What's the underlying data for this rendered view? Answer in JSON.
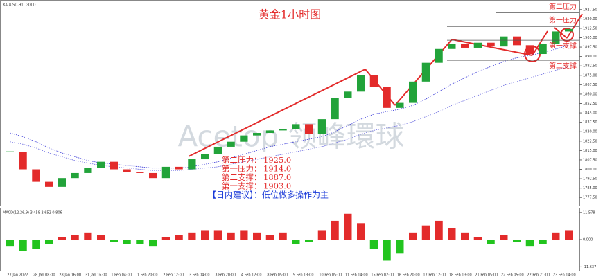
{
  "chart_data": [
    {
      "type": "candlestick",
      "title": "黄金1小时图",
      "symbol": "XAUUSD,H1: GOLD",
      "watermark": "Acetop 领峰環球",
      "categories": [
        "27 Jan 2022",
        null,
        "28 Jan 08:00",
        null,
        "28 Jan 16:00",
        null,
        "31 Jan 16:00",
        null,
        "1 Feb 04:00",
        null,
        "1 Feb 20:00",
        null,
        "2 Feb 12:00",
        null,
        "3 Feb 04:00",
        null,
        "3 Feb 20:00",
        null,
        "4 Feb 12:00",
        null,
        "8 Feb 05:00",
        null,
        "9 Feb 13:00",
        null,
        "10 Feb 05:00",
        null,
        "11 Feb 14:00",
        null,
        "15 Feb 02:00",
        null,
        "16 Feb 20:00",
        null,
        "17 Feb 12:00",
        null,
        "18 Feb 13:00",
        null,
        "21 Feb 05:00",
        null,
        "22 Feb 05:00",
        null,
        "22 Feb 21:00",
        null,
        "23 Feb 14:00",
        null
      ],
      "closes": [
        1814,
        1800,
        1790,
        1786,
        1793,
        1797,
        1801,
        1806,
        1800,
        1798,
        1797,
        1793,
        1802,
        1800,
        1808,
        1812,
        1818,
        1822,
        1827,
        1829,
        1831,
        1832,
        1836,
        1828,
        1840,
        1857,
        1862,
        1875,
        1866,
        1849,
        1853,
        1870,
        1885,
        1896,
        1900,
        1897,
        1901,
        1898,
        1906,
        1899,
        1892,
        1900,
        1910,
        1912
      ],
      "up_color": "#22a33a",
      "down_color": "#e32b2b",
      "moving_averages": [
        {
          "color": "#3a3ad8",
          "values": [
            1829,
            1826,
            1822,
            1817,
            1813,
            1810,
            1807,
            1805,
            1804,
            1803,
            1802,
            1801,
            1801,
            1801,
            1802,
            1804,
            1806,
            1809,
            1812,
            1815,
            1818,
            1820,
            1822,
            1824,
            1826,
            1830,
            1835,
            1840,
            1844,
            1846,
            1848,
            1851,
            1856,
            1862,
            1868,
            1873,
            1878,
            1882,
            1886,
            1889,
            1891,
            1893,
            1896,
            1899
          ]
        },
        {
          "color": "#6a6ae0",
          "values": [
            1822,
            1820,
            1817,
            1813,
            1810,
            1807,
            1805,
            1803,
            1802,
            1801,
            1800,
            1799,
            1799,
            1799,
            1800,
            1801,
            1802,
            1804,
            1806,
            1808,
            1810,
            1812,
            1814,
            1816,
            1818,
            1821,
            1824,
            1828,
            1831,
            1833,
            1835,
            1838,
            1842,
            1846,
            1851,
            1855,
            1859,
            1863,
            1867,
            1870,
            1873,
            1876,
            1879,
            1882
          ]
        }
      ],
      "ylim": [
        1771,
        1934
      ],
      "yticks": [
        {
          "value": 1927.5,
          "label": "1927.50"
        },
        {
          "value": 1920,
          "label": "1920.00"
        },
        {
          "value": 1912.5,
          "label": "1912.50"
        },
        {
          "value": 1905,
          "label": "1905.00"
        },
        {
          "value": 1897.5,
          "label": "1897.50"
        },
        {
          "value": 1890,
          "label": "1890.00"
        },
        {
          "value": 1882.5,
          "label": "1882.50"
        },
        {
          "value": 1875,
          "label": "1875.00"
        },
        {
          "value": 1867.5,
          "label": "1867.50"
        },
        {
          "value": 1860,
          "label": "1860.00"
        },
        {
          "value": 1852.5,
          "label": "1852.50"
        },
        {
          "value": 1845,
          "label": "1845.00"
        },
        {
          "value": 1837.5,
          "label": "1837.50"
        },
        {
          "value": 1830,
          "label": "1830.00"
        },
        {
          "value": 1822.5,
          "label": "1822.50"
        },
        {
          "value": 1815,
          "label": "1815.00"
        },
        {
          "value": 1807.5,
          "label": "1807.50"
        },
        {
          "value": 1800,
          "label": "1800.00"
        },
        {
          "value": 1792.5,
          "label": "1792.50"
        },
        {
          "value": 1785,
          "label": "1785.00"
        },
        {
          "value": 1777.5,
          "label": "1777.50"
        }
      ],
      "separator": "：",
      "levels": [
        {
          "name": "第二压力",
          "value": 1925,
          "label": "1925.0"
        },
        {
          "name": "第一压力",
          "value": 1914,
          "label": "1914.0"
        },
        {
          "name": "第二支撑",
          "value": 1887,
          "label": "1887.0"
        },
        {
          "name": "第一支撑",
          "value": 1903,
          "label": "1903.0"
        }
      ],
      "advice": "【日内建议】：低位做多操作为主"
    },
    {
      "type": "histogram",
      "title": "MACD(12,26,9) 3.458 2.652 0.806",
      "values": [
        -3,
        -5,
        -4,
        -2,
        1,
        2,
        3,
        2,
        -1,
        -2,
        -2,
        -3,
        1,
        2,
        3,
        4,
        4,
        3,
        4,
        3,
        2,
        3,
        -2,
        -1,
        4,
        8,
        11,
        7,
        -4,
        -9,
        -6,
        3,
        6,
        8,
        5,
        3,
        1,
        -2,
        2,
        -1,
        -3,
        -2,
        3,
        4
      ],
      "up_color": "#e32b2b",
      "down_color": "#22c41e",
      "ylim": [
        -13,
        13
      ],
      "yticks": [
        {
          "value": 11.578,
          "label": "11.578"
        },
        {
          "value": 0,
          "label": "0.000"
        },
        {
          "value": -11.637,
          "label": "-11.637"
        }
      ]
    }
  ]
}
